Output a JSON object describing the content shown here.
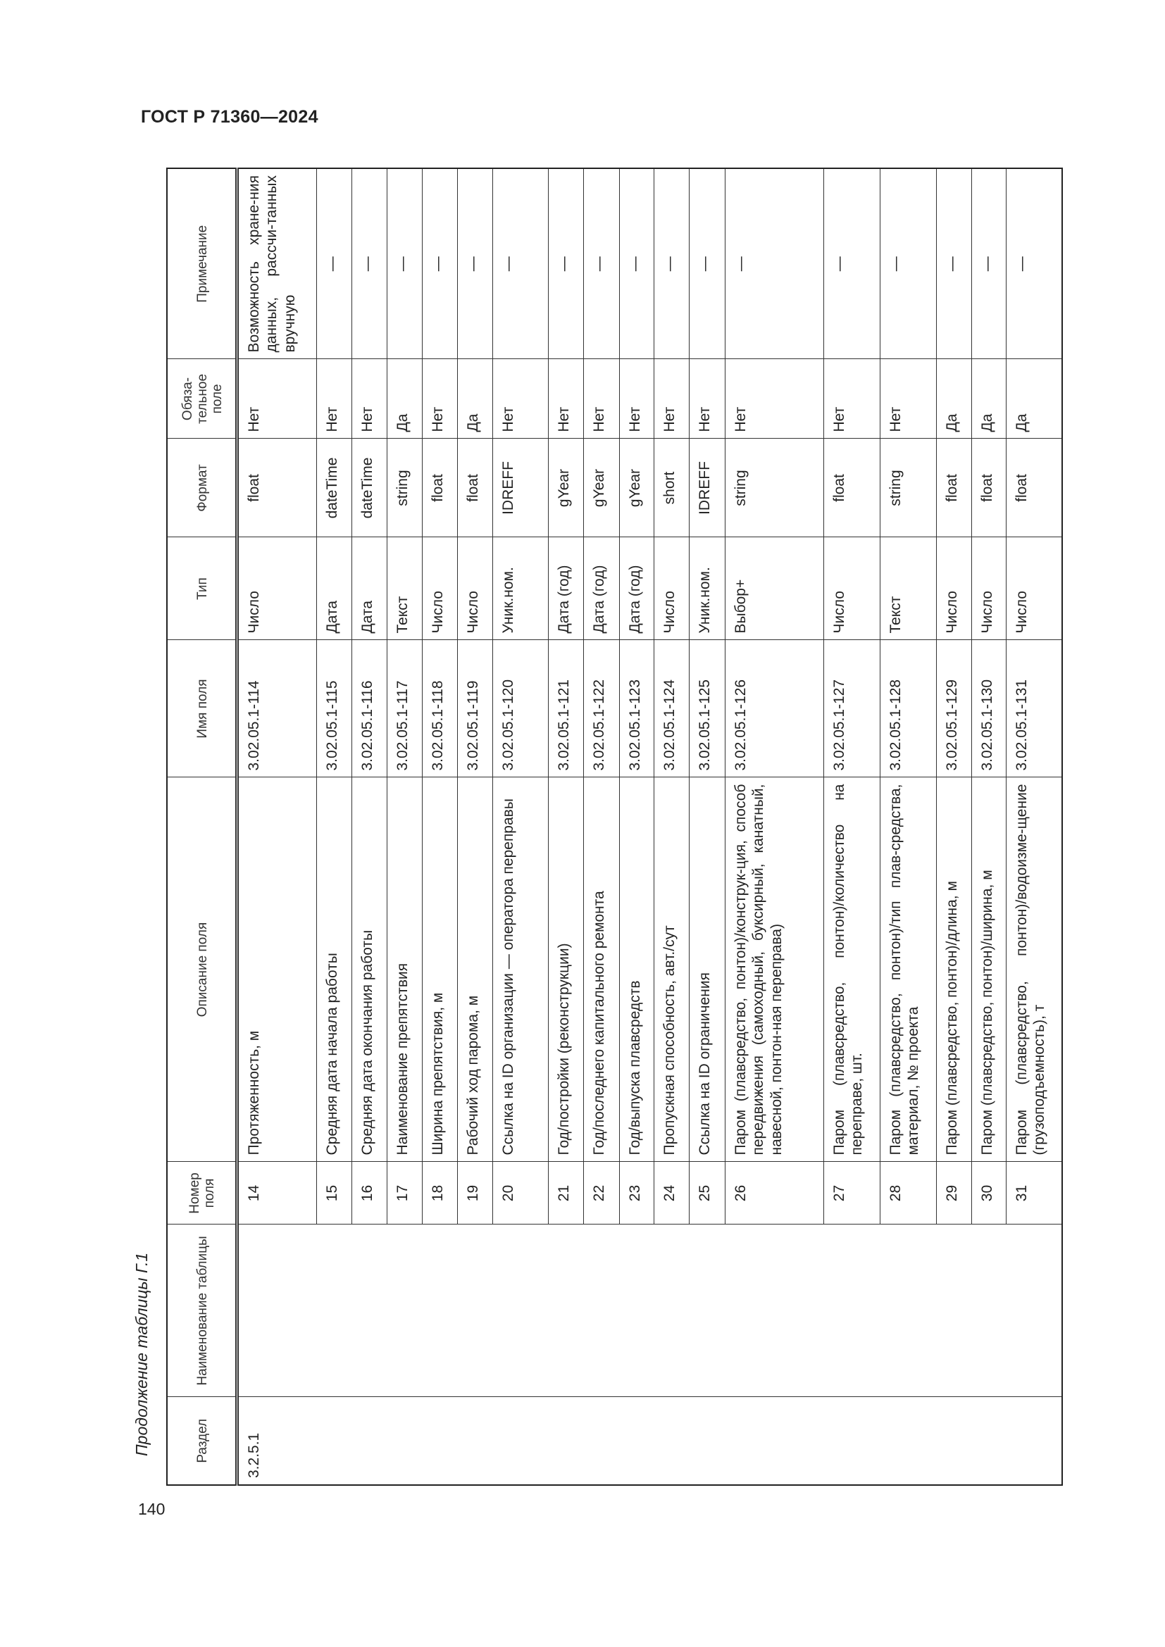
{
  "document": {
    "standard": "ГОСТ Р 71360—2024",
    "page_number": "140",
    "caption": "Продолжение таблицы Г.1"
  },
  "table": {
    "headers": [
      "Раздел",
      "Наименование таблицы",
      "Номер поля",
      "Описание поля",
      "Имя поля",
      "Тип",
      "Формат",
      "Обяза-тельное поле",
      "Примечание"
    ],
    "section": "3.2.5.1",
    "table_name": "",
    "rows": [
      {
        "num": "14",
        "desc": "Протяженность, м",
        "name": "3.02.05.1-114",
        "type": "Число",
        "format": "float",
        "req": "Нет",
        "note": "Возможность хране-ния данных, рассчи-танных вручную"
      },
      {
        "num": "15",
        "desc": "Средняя дата начала работы",
        "name": "3.02.05.1-115",
        "type": "Дата",
        "format": "dateTime",
        "req": "Нет",
        "note": "—"
      },
      {
        "num": "16",
        "desc": "Средняя дата окончания работы",
        "name": "3.02.05.1-116",
        "type": "Дата",
        "format": "dateTime",
        "req": "Нет",
        "note": "—"
      },
      {
        "num": "17",
        "desc": "Наименование препятствия",
        "name": "3.02.05.1-117",
        "type": "Текст",
        "format": "string",
        "req": "Да",
        "note": "—"
      },
      {
        "num": "18",
        "desc": "Ширина препятствия, м",
        "name": "3.02.05.1-118",
        "type": "Число",
        "format": "float",
        "req": "Нет",
        "note": "—"
      },
      {
        "num": "19",
        "desc": "Рабочий ход парома, м",
        "name": "3.02.05.1-119",
        "type": "Число",
        "format": "float",
        "req": "Да",
        "note": "—"
      },
      {
        "num": "20",
        "desc": "Ссылка на ID организации — оператора переправы",
        "name": "3.02.05.1-120",
        "type": "Уник.ном.",
        "format": "IDREFF",
        "req": "Нет",
        "note": "—"
      },
      {
        "num": "21",
        "desc": "Год/постройки (реконструкции)",
        "name": "3.02.05.1-121",
        "type": "Дата (год)",
        "format": "gYear",
        "req": "Нет",
        "note": "—"
      },
      {
        "num": "22",
        "desc": "Год/последнего капитального ремонта",
        "name": "3.02.05.1-122",
        "type": "Дата (год)",
        "format": "gYear",
        "req": "Нет",
        "note": "—"
      },
      {
        "num": "23",
        "desc": "Год/выпуска плавсредств",
        "name": "3.02.05.1-123",
        "type": "Дата (год)",
        "format": "gYear",
        "req": "Нет",
        "note": "—"
      },
      {
        "num": "24",
        "desc": "Пропускная способность, авт./сут",
        "name": "3.02.05.1-124",
        "type": "Число",
        "format": "short",
        "req": "Нет",
        "note": "—"
      },
      {
        "num": "25",
        "desc": "Ссылка на ID ограничения",
        "name": "3.02.05.1-125",
        "type": "Уник.ном.",
        "format": "IDREFF",
        "req": "Нет",
        "note": "—"
      },
      {
        "num": "26",
        "desc": "Паром (плавсредство, понтон)/конструк-ция, способ передвижения (самоходный, буксирный, канатный, навесной, понтон-ная переправа)",
        "name": "3.02.05.1-126",
        "type": "Выбор+",
        "format": "string",
        "req": "Нет",
        "note": "—"
      },
      {
        "num": "27",
        "desc": "Паром (плавсредство, понтон)/количество на переправе, шт.",
        "name": "3.02.05.1-127",
        "type": "Число",
        "format": "float",
        "req": "Нет",
        "note": "—"
      },
      {
        "num": "28",
        "desc": "Паром (плавсредство, понтон)/тип плав-средства, материал, № проекта",
        "name": "3.02.05.1-128",
        "type": "Текст",
        "format": "string",
        "req": "Нет",
        "note": "—"
      },
      {
        "num": "29",
        "desc": "Паром (плавсредство, понтон)/длина, м",
        "name": "3.02.05.1-129",
        "type": "Число",
        "format": "float",
        "req": "Да",
        "note": "—"
      },
      {
        "num": "30",
        "desc": "Паром (плавсредство, понтон)/ширина, м",
        "name": "3.02.05.1-130",
        "type": "Число",
        "format": "float",
        "req": "Да",
        "note": "—"
      },
      {
        "num": "31",
        "desc": "Паром (плавсредство, понтон)/водоизме-щение (грузоподъемность), т",
        "name": "3.02.05.1-131",
        "type": "Число",
        "format": "float",
        "req": "Да",
        "note": "—"
      }
    ]
  }
}
